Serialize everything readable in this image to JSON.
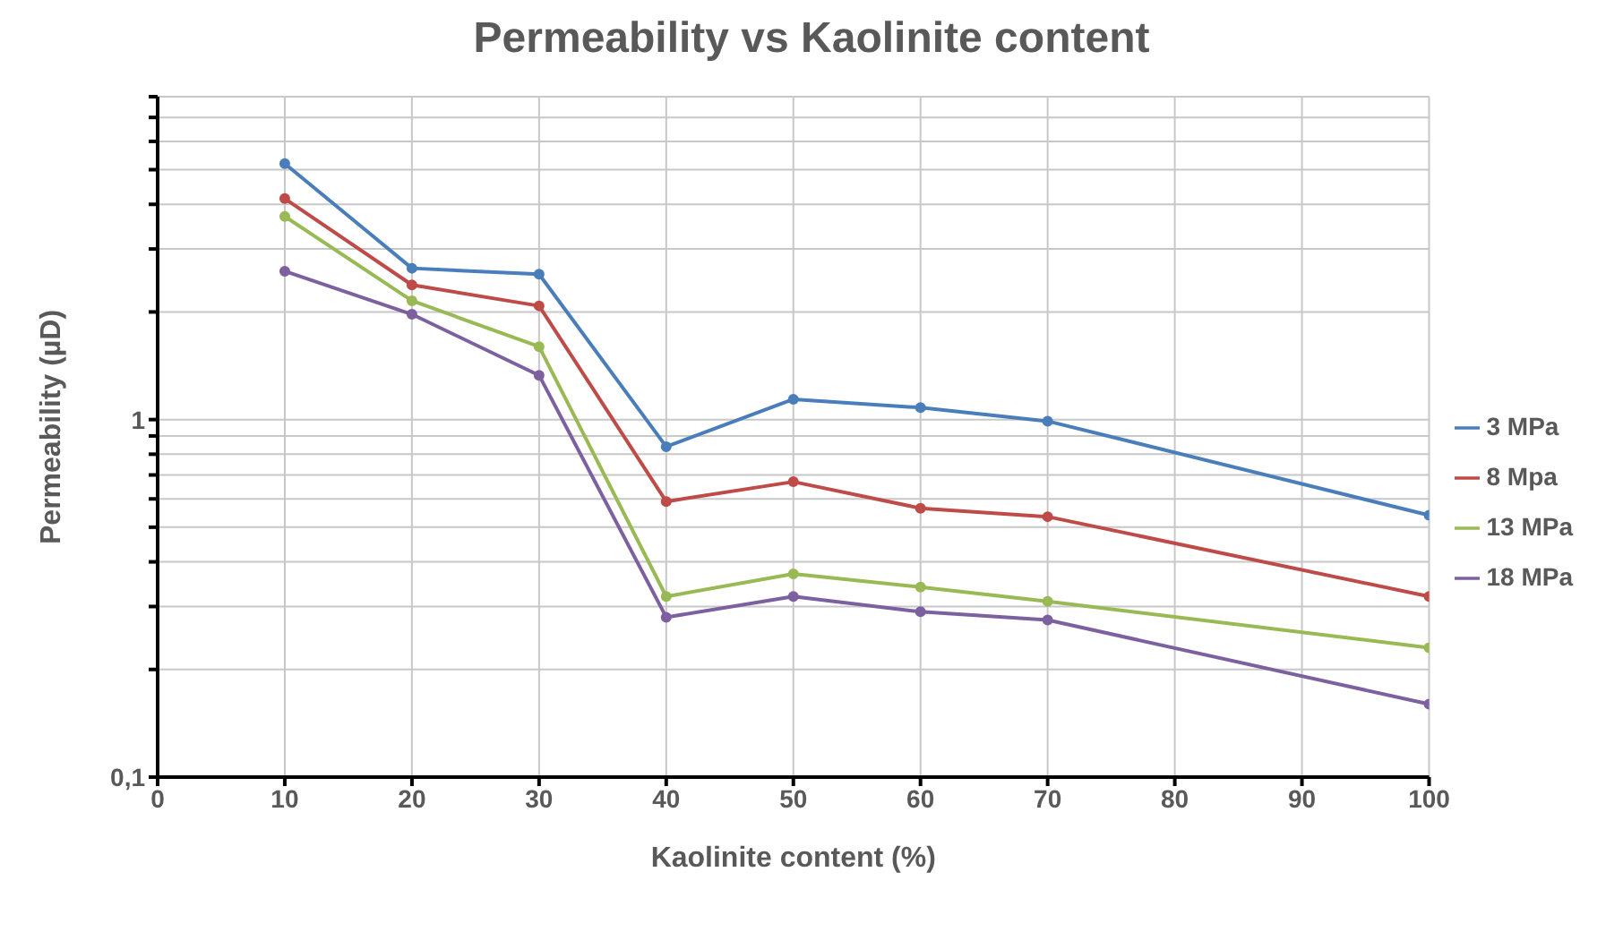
{
  "chart_data": {
    "type": "line",
    "title": "Permeability vs Kaolinite content",
    "xlabel": "Kaolinite content (%)",
    "ylabel": "Permeability (µD)",
    "x": [
      10,
      20,
      30,
      40,
      50,
      60,
      70,
      100
    ],
    "series": [
      {
        "name": "3 MPa",
        "color": "#4a7ebb",
        "values": [
          5.2,
          2.65,
          2.55,
          0.84,
          1.14,
          1.08,
          0.99,
          0.54
        ]
      },
      {
        "name": "8 Mpa",
        "color": "#be4b48",
        "values": [
          4.15,
          2.38,
          2.08,
          0.59,
          0.67,
          0.565,
          0.535,
          0.32
        ]
      },
      {
        "name": "13 MPa",
        "color": "#98b954",
        "values": [
          3.7,
          2.15,
          1.6,
          0.32,
          0.37,
          0.34,
          0.31,
          0.23
        ]
      },
      {
        "name": "18 MPa",
        "color": "#7d60a0",
        "values": [
          2.6,
          1.97,
          1.33,
          0.28,
          0.32,
          0.29,
          0.275,
          0.16
        ]
      }
    ],
    "xlim": [
      0,
      100
    ],
    "xticks": [
      0,
      10,
      20,
      30,
      40,
      50,
      60,
      70,
      80,
      90,
      100
    ],
    "ylim": [
      0.1,
      8
    ],
    "yticks": [
      {
        "value": 0.1,
        "label": "0,1"
      },
      {
        "value": 0.2,
        "label": null
      },
      {
        "value": 0.3,
        "label": null
      },
      {
        "value": 0.4,
        "label": null
      },
      {
        "value": 0.5,
        "label": null
      },
      {
        "value": 0.6,
        "label": null
      },
      {
        "value": 0.7,
        "label": null
      },
      {
        "value": 0.8,
        "label": null
      },
      {
        "value": 0.9,
        "label": null
      },
      1,
      {
        "value": 2,
        "label": null
      },
      {
        "value": 3,
        "label": null
      },
      {
        "value": 4,
        "label": null
      },
      {
        "value": 5,
        "label": null
      },
      {
        "value": 6,
        "label": null
      },
      {
        "value": 7,
        "label": null
      },
      {
        "value": 8,
        "label": null
      }
    ],
    "log": true,
    "grid": true,
    "legend": "right",
    "marker": "circle",
    "line_style": "solid"
  }
}
